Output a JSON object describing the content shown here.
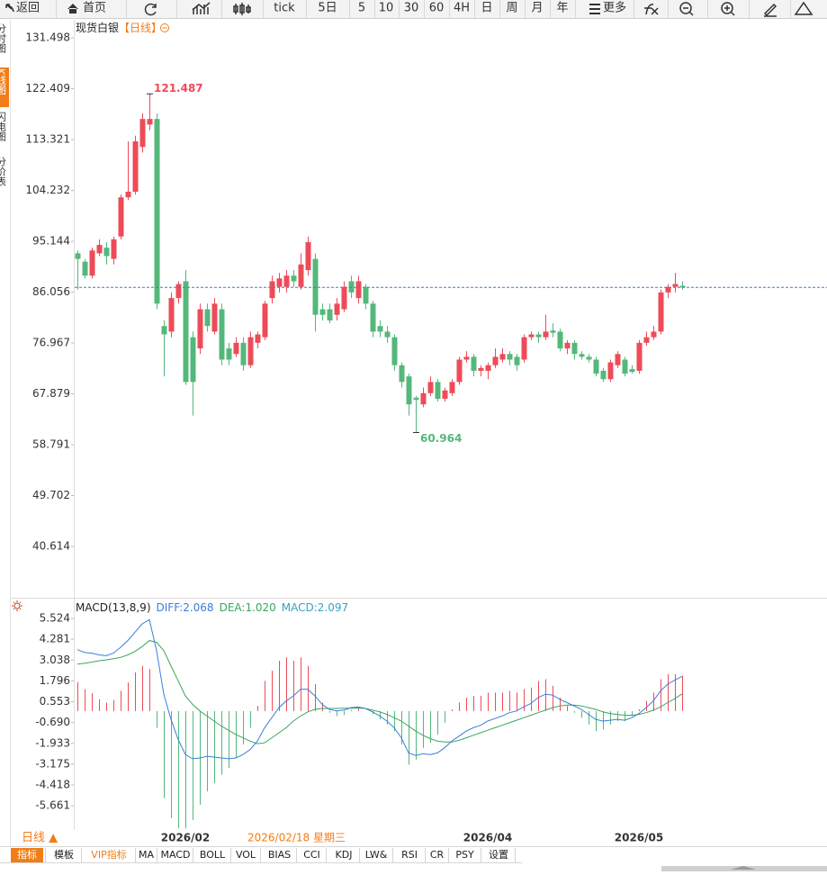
{
  "toolbar": [
    "返回",
    "首页",
    "tick",
    "5日",
    "5",
    "10",
    "30",
    "60",
    "4H",
    "日",
    "周",
    "月",
    "年",
    "更多"
  ],
  "left_tabs": [
    "分时图",
    "K线图",
    "闪电图",
    "分价表"
  ],
  "period_button": "日线 ▲",
  "cursor_label": "2026/02/18 星期三",
  "bottom_tabs": [
    "指标",
    "模板",
    "VIP指标",
    "MA",
    "MACD",
    "BOLL",
    "VOL",
    "BIAS",
    "CCI",
    "KDJ",
    "LW&",
    "RSI",
    "CR",
    "PSY",
    "设置"
  ],
  "chart_data": [
    {
      "type": "candlestick",
      "title": "现货白银",
      "subtitle": "【日线】",
      "up_color": "#ee4b59",
      "down_color": "#54b87b",
      "last_line_color": "#3a7fc0",
      "ylim": [
        31.77,
        134.72
      ],
      "yticks": [
        131.498,
        122.409,
        113.321,
        104.232,
        95.144,
        86.056,
        76.967,
        67.879,
        58.791,
        49.702,
        40.614
      ],
      "categories": [
        null,
        null,
        null,
        null,
        null,
        null,
        null,
        null,
        null,
        null,
        null,
        null,
        null,
        null,
        null,
        "2026/02",
        null,
        null,
        null,
        null,
        null,
        null,
        null,
        null,
        null,
        null,
        null,
        null,
        null,
        null,
        null,
        null,
        null,
        null,
        null,
        null,
        null,
        null,
        null,
        null,
        null,
        null,
        null,
        null,
        null,
        null,
        null,
        null,
        null,
        null,
        null,
        null,
        null,
        null,
        null,
        null,
        null,
        "2026/04",
        null,
        null,
        null,
        null,
        null,
        null,
        null,
        null,
        null,
        null,
        null,
        null,
        null,
        null,
        null,
        null,
        null,
        null,
        null,
        null,
        "2026/05",
        null,
        null,
        null,
        null,
        null,
        null
      ],
      "open": [
        93,
        91.5,
        89,
        93,
        94,
        92,
        96,
        103,
        104,
        112,
        116,
        117,
        80,
        79,
        85,
        88,
        78,
        76,
        83,
        79,
        83,
        76,
        75,
        77,
        73,
        77,
        78,
        85,
        87,
        87,
        89,
        87,
        90,
        92,
        83,
        83,
        82,
        83,
        88,
        85,
        87,
        84,
        80,
        79,
        78,
        73,
        71,
        67.2,
        66,
        68,
        70,
        67,
        68,
        70,
        74,
        74.5,
        72,
        72,
        73,
        74,
        75,
        74.5,
        74,
        78,
        78.5,
        78,
        79.2,
        79,
        76,
        77,
        75,
        74.5,
        74,
        72,
        70.5,
        73,
        74,
        72.3,
        72,
        77,
        78,
        79,
        86,
        87,
        87.2
      ],
      "high": [
        93.5,
        92,
        94,
        95.5,
        95,
        96,
        103.5,
        113,
        114,
        118,
        121.487,
        118,
        81,
        86,
        88,
        90,
        79,
        84,
        84,
        85,
        84,
        77,
        78,
        78,
        79,
        79,
        84.5,
        89,
        89.5,
        90,
        90,
        93,
        96,
        93,
        84,
        84,
        85,
        88,
        89,
        89,
        87.5,
        84.5,
        81,
        80,
        78.5,
        73.5,
        71.5,
        67.5,
        69,
        71,
        70.5,
        69,
        70.5,
        74.5,
        75.5,
        75,
        73,
        73.5,
        76,
        76,
        75.5,
        75,
        78.5,
        79,
        79,
        82,
        80.5,
        79.5,
        77.5,
        77.5,
        75.5,
        75,
        74.5,
        72.5,
        74,
        75.5,
        74.5,
        73,
        77.5,
        79,
        80,
        86.5,
        87.5,
        89.5,
        88
      ],
      "low": [
        86.5,
        88.5,
        88.5,
        92.5,
        91,
        91,
        95.5,
        102.5,
        103.5,
        111,
        115,
        83,
        71,
        78,
        84,
        69.5,
        64,
        75,
        79,
        78.5,
        73,
        73,
        74.5,
        72,
        72.5,
        76,
        77.5,
        84,
        86,
        86,
        87,
        86.5,
        89,
        79,
        81,
        80.5,
        81,
        82.5,
        85,
        84,
        83,
        78,
        78,
        77,
        72,
        69,
        64,
        60.964,
        65.5,
        67.5,
        66.5,
        66.5,
        67.5,
        69.5,
        73.5,
        71,
        71,
        70.5,
        72.5,
        73.5,
        73,
        72,
        73.5,
        77.5,
        77,
        77.5,
        78,
        75.5,
        75,
        74,
        74,
        73.5,
        71,
        70,
        70,
        72.5,
        71,
        71.5,
        71.5,
        76.5,
        77.5,
        78.5,
        85,
        86,
        86.5
      ],
      "close": [
        92,
        89,
        93.5,
        94.5,
        92.5,
        95.5,
        103,
        104,
        113,
        117,
        117,
        84,
        78.5,
        85,
        87.5,
        70,
        70,
        83,
        80,
        84,
        74,
        74,
        77,
        73,
        78,
        78.5,
        84,
        88,
        88.5,
        89,
        88,
        91,
        95,
        82,
        82,
        81,
        84,
        87,
        86,
        88,
        84,
        79,
        79,
        78,
        73,
        70,
        66,
        66.8,
        68,
        70,
        67,
        68.5,
        70,
        74,
        74.5,
        72,
        72.5,
        73,
        74.5,
        75,
        74,
        73,
        78,
        78.5,
        78,
        79,
        78.8,
        76,
        77,
        75,
        74.5,
        74,
        71.5,
        70.5,
        73.5,
        75,
        71.5,
        71.8,
        77,
        78,
        79,
        86,
        87,
        87.5,
        86.9
      ],
      "high_mark_index": 10,
      "low_mark_index": 47
    },
    {
      "type": "macd",
      "title": "MACD(13,8,9)",
      "ylim": [
        -7.1,
        5.9
      ],
      "yticks": [
        5.524,
        4.281,
        3.038,
        1.796,
        0.553,
        {
          "value": -0.69,
          "label": "-0.690"
        },
        -1.933,
        -3.175,
        -4.418,
        -5.661
      ],
      "diff": {
        "legend": "DIFF:2.068",
        "color": "#3b7fd6",
        "values": [
          3.66,
          3.5,
          3.45,
          3.35,
          3.3,
          3.45,
          3.8,
          4.2,
          4.7,
          5.2,
          5.45,
          3.6,
          1.0,
          -0.5,
          -1.7,
          -2.6,
          -2.85,
          -2.8,
          -2.7,
          -2.75,
          -2.8,
          -2.85,
          -2.8,
          -2.6,
          -2.3,
          -1.8,
          -1.0,
          -0.4,
          0.2,
          0.6,
          0.9,
          1.3,
          1.3,
          0.9,
          0.4,
          0.1,
          0.0,
          0.05,
          0.2,
          0.25,
          0.15,
          -0.05,
          -0.3,
          -0.6,
          -1.0,
          -1.6,
          -2.5,
          -2.65,
          -2.55,
          -2.6,
          -2.5,
          -2.2,
          -1.8,
          -1.5,
          -1.2,
          -1.0,
          -0.85,
          -0.6,
          -0.45,
          -0.3,
          -0.1,
          0.0,
          0.25,
          0.45,
          0.8,
          1.0,
          0.95,
          0.7,
          0.5,
          0.3,
          0.1,
          -0.2,
          -0.5,
          -0.6,
          -0.55,
          -0.5,
          -0.55,
          -0.4,
          -0.15,
          0.2,
          0.6,
          1.2,
          1.6,
          1.85,
          2.068
        ]
      },
      "dea": {
        "legend": "DEA:1.020",
        "color": "#3aa65c",
        "values": [
          2.8,
          2.85,
          2.92,
          3.0,
          3.05,
          3.12,
          3.2,
          3.35,
          3.55,
          3.85,
          4.2,
          4.1,
          3.6,
          2.7,
          1.8,
          0.9,
          0.4,
          0.0,
          -0.3,
          -0.6,
          -0.9,
          -1.15,
          -1.4,
          -1.6,
          -1.8,
          -1.95,
          -1.9,
          -1.6,
          -1.3,
          -1.0,
          -0.6,
          -0.3,
          -0.05,
          0.1,
          0.15,
          0.15,
          0.15,
          0.17,
          0.17,
          0.18,
          0.15,
          0.05,
          -0.05,
          -0.2,
          -0.4,
          -0.6,
          -0.9,
          -1.2,
          -1.45,
          -1.65,
          -1.8,
          -1.85,
          -1.85,
          -1.75,
          -1.6,
          -1.45,
          -1.3,
          -1.15,
          -1.0,
          -0.85,
          -0.7,
          -0.55,
          -0.4,
          -0.25,
          -0.1,
          0.05,
          0.2,
          0.3,
          0.35,
          0.35,
          0.3,
          0.2,
          0.1,
          -0.05,
          -0.15,
          -0.2,
          -0.25,
          -0.25,
          -0.2,
          -0.1,
          0.05,
          0.25,
          0.5,
          0.75,
          1.02
        ]
      },
      "hist": {
        "legend": "MACD:2.097",
        "color": "#35a2c2",
        "up_color": "#ee4b59",
        "down_color": "#54b87b",
        "values": [
          1.72,
          1.3,
          1.06,
          0.7,
          0.5,
          0.66,
          1.2,
          1.7,
          2.3,
          2.7,
          2.5,
          -1.0,
          -5.2,
          -6.4,
          -7.0,
          -7.0,
          -6.5,
          -5.6,
          -4.8,
          -4.3,
          -3.8,
          -3.4,
          -2.8,
          -2.0,
          -1.0,
          0.3,
          1.8,
          2.4,
          3.0,
          3.2,
          3.0,
          3.2,
          2.7,
          1.6,
          0.5,
          -0.1,
          -0.3,
          -0.24,
          0.06,
          0.14,
          0,
          -0.2,
          -0.5,
          -0.8,
          -1.2,
          -2.0,
          -3.2,
          -2.9,
          -2.2,
          -1.9,
          -1.4,
          -0.7,
          0.1,
          0.5,
          0.8,
          0.9,
          0.9,
          1.1,
          1.1,
          1.1,
          1.2,
          1.1,
          1.3,
          1.4,
          1.8,
          1.9,
          1.5,
          0.8,
          0.3,
          -0.1,
          -0.4,
          -0.8,
          -1.2,
          -1.1,
          -0.8,
          -0.6,
          -0.6,
          -0.3,
          0.1,
          0.6,
          1.1,
          1.9,
          2.2,
          2.2,
          2.097
        ]
      }
    }
  ]
}
